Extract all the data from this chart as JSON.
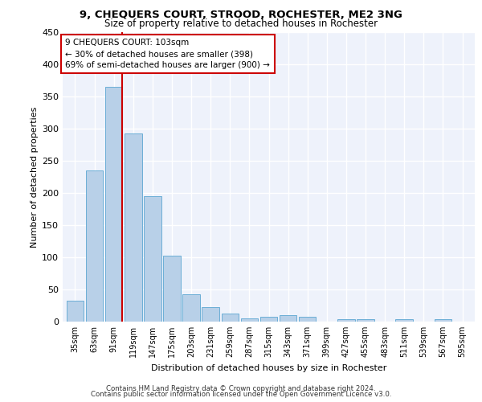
{
  "title1": "9, CHEQUERS COURT, STROOD, ROCHESTER, ME2 3NG",
  "title2": "Size of property relative to detached houses in Rochester",
  "xlabel": "Distribution of detached houses by size in Rochester",
  "ylabel": "Number of detached properties",
  "bar_color": "#b8d0e8",
  "bar_edge_color": "#6baed6",
  "bins": [
    35,
    63,
    91,
    119,
    147,
    175,
    203,
    231,
    259,
    287,
    315,
    343,
    371,
    399,
    427,
    455,
    483,
    511,
    539,
    567,
    595
  ],
  "values": [
    33,
    235,
    365,
    293,
    195,
    103,
    43,
    22,
    12,
    5,
    8,
    10,
    8,
    0,
    4,
    4,
    0,
    4,
    0,
    4,
    0
  ],
  "tick_labels": [
    "35sqm",
    "63sqm",
    "91sqm",
    "119sqm",
    "147sqm",
    "175sqm",
    "203sqm",
    "231sqm",
    "259sqm",
    "287sqm",
    "315sqm",
    "343sqm",
    "371sqm",
    "399sqm",
    "427sqm",
    "455sqm",
    "483sqm",
    "511sqm",
    "539sqm",
    "567sqm",
    "595sqm"
  ],
  "ylim": [
    0,
    450
  ],
  "yticks": [
    0,
    50,
    100,
    150,
    200,
    250,
    300,
    350,
    400,
    450
  ],
  "vline_x": 103,
  "vline_color": "#cc0000",
  "annotation_title": "9 CHEQUERS COURT: 103sqm",
  "annotation_line1": "← 30% of detached houses are smaller (398)",
  "annotation_line2": "69% of semi-detached houses are larger (900) →",
  "annotation_box_color": "#ffffff",
  "annotation_box_edge": "#cc0000",
  "background_color": "#eef2fb",
  "grid_color": "#ffffff",
  "footer1": "Contains HM Land Registry data © Crown copyright and database right 2024.",
  "footer2": "Contains public sector information licensed under the Open Government Licence v3.0."
}
